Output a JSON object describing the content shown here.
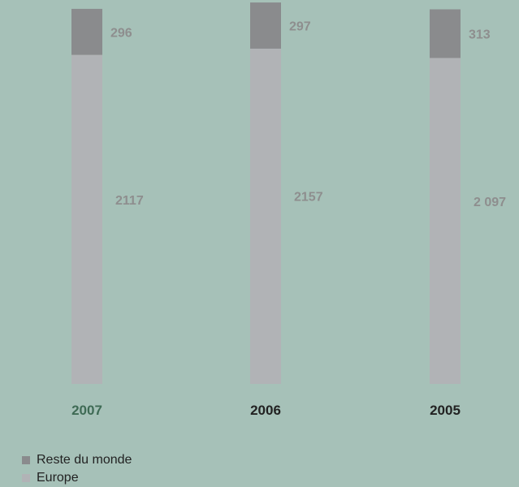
{
  "chart_data": {
    "type": "bar",
    "stacked": true,
    "categories": [
      "2007",
      "2006",
      "2005"
    ],
    "highlight_category": "2007",
    "series": [
      {
        "name": "Europe",
        "values": [
          2117,
          2157,
          2097
        ],
        "labels": [
          "2117",
          "2157",
          "2 097"
        ],
        "color": "#b1b3b6"
      },
      {
        "name": "Reste du monde",
        "values": [
          296,
          297,
          313
        ],
        "labels": [
          "296",
          "297",
          "313"
        ],
        "color": "#8a8b8d"
      }
    ],
    "legend_position": "bottom-left",
    "grid": false,
    "ylim": [
      0,
      2470
    ]
  },
  "colors": {
    "background": "#a6c1b8",
    "year_label": "#222222",
    "highlight_year_label": "#3f6b55",
    "value_label": "#8e8e8e"
  }
}
